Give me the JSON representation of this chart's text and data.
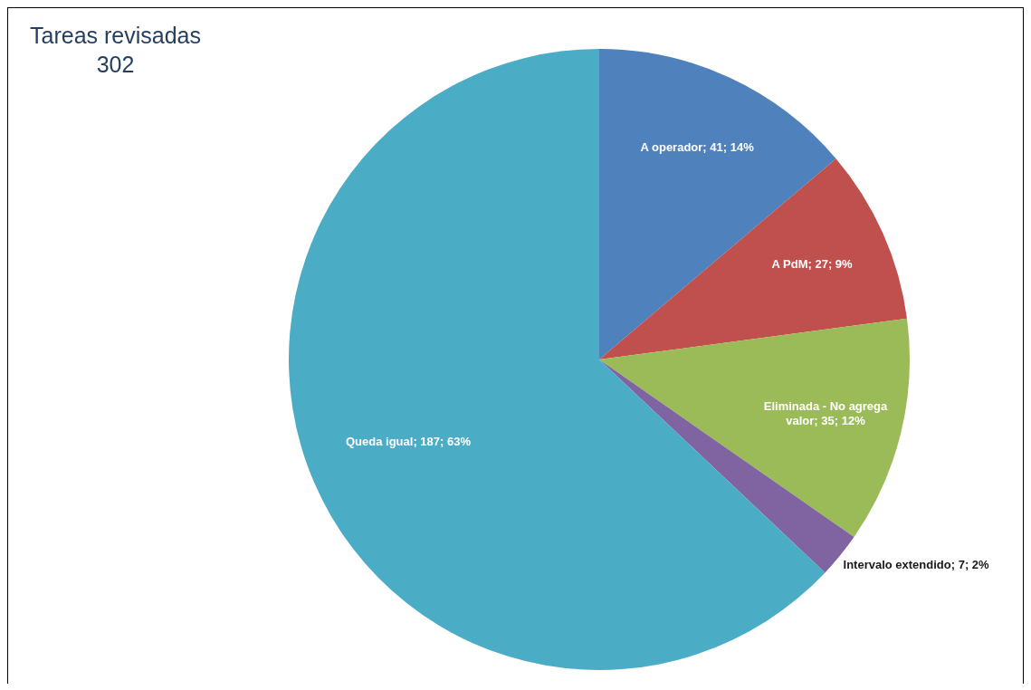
{
  "chart_data": {
    "type": "pie",
    "title": "Tareas revisadas",
    "subtitle": "302",
    "categories": [
      "A operador",
      "A PdM",
      "Eliminada - No agrega valor",
      "Intervalo extendido",
      "Queda igual"
    ],
    "values": [
      41,
      27,
      35,
      7,
      187
    ],
    "colors": [
      "#4f81bd",
      "#c0504d",
      "#9bbb59",
      "#8064a2",
      "#4bacc6"
    ],
    "value_labels": [
      "41; 14%",
      "27; 9%",
      "35; 12%",
      "7; 2%",
      "187; 63%"
    ],
    "legend": false
  }
}
